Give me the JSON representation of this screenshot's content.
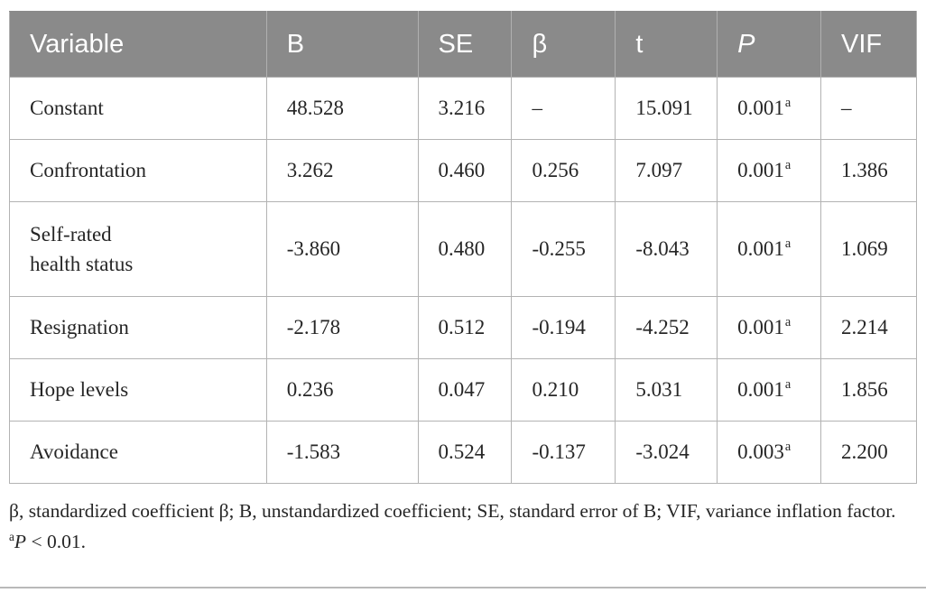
{
  "figure": {
    "header_bg": "#8a8a8a",
    "header_text_color": "#ffffff",
    "border_color": "#b3b3b3",
    "body_text_color": "#262626"
  },
  "chart_data": {
    "type": "table",
    "columns": [
      "Variable",
      "B",
      "SE",
      "β",
      "t",
      "P",
      "VIF"
    ],
    "rows": [
      [
        "Constant",
        "48.528",
        "3.216",
        "–",
        "15.091",
        "0.001 (a)",
        "–"
      ],
      [
        "Confrontation",
        "3.262",
        "0.460",
        "0.256",
        "7.097",
        "0.001 (a)",
        "1.386"
      ],
      [
        "Self-rated health status",
        "-3.860",
        "0.480",
        "-0.255",
        "-8.043",
        "0.001 (a)",
        "1.069"
      ],
      [
        "Resignation",
        "-2.178",
        "0.512",
        "-0.194",
        "-4.252",
        "0.001 (a)",
        "2.214"
      ],
      [
        "Hope levels",
        "0.236",
        "0.047",
        "0.210",
        "5.031",
        "0.001 (a)",
        "1.856"
      ],
      [
        "Avoidance",
        "-1.583",
        "0.524",
        "-0.137",
        "-3.024",
        "0.003 (a)",
        "2.200"
      ]
    ]
  },
  "table": {
    "columns": {
      "variable": "Variable",
      "b": "B",
      "se": "SE",
      "beta": "β",
      "t": "t",
      "p": "P",
      "vif": "VIF"
    },
    "rows": [
      {
        "variable": "Constant",
        "b": "48.528",
        "se": "3.216",
        "beta": "–",
        "t": "15.091",
        "p": "0.001",
        "p_note": "a",
        "vif": "–"
      },
      {
        "variable": "Confrontation",
        "b": "3.262",
        "se": "0.460",
        "beta": "0.256",
        "t": "7.097",
        "p": "0.001",
        "p_note": "a",
        "vif": "1.386"
      },
      {
        "variable": "Self-rated\nhealth status",
        "b": "-3.860",
        "se": "0.480",
        "beta": "-0.255",
        "t": "-8.043",
        "p": "0.001",
        "p_note": "a",
        "vif": "1.069"
      },
      {
        "variable": "Resignation",
        "b": "-2.178",
        "se": "0.512",
        "beta": "-0.194",
        "t": "-4.252",
        "p": "0.001",
        "p_note": "a",
        "vif": "2.214"
      },
      {
        "variable": "Hope levels",
        "b": "0.236",
        "se": "0.047",
        "beta": "0.210",
        "t": "5.031",
        "p": "0.001",
        "p_note": "a",
        "vif": "1.856"
      },
      {
        "variable": "Avoidance",
        "b": "-1.583",
        "se": "0.524",
        "beta": "-0.137",
        "t": "-3.024",
        "p": "0.003",
        "p_note": "a",
        "vif": "2.200"
      }
    ]
  },
  "footnote": {
    "abbreviations": "β, standardized coefficient β; B, unstandardized coefficient; SE, standard error of B; VIF, variance inflation factor.",
    "significance_marker": "a",
    "significance_stat": "P",
    "significance_rest": " < 0.01."
  }
}
